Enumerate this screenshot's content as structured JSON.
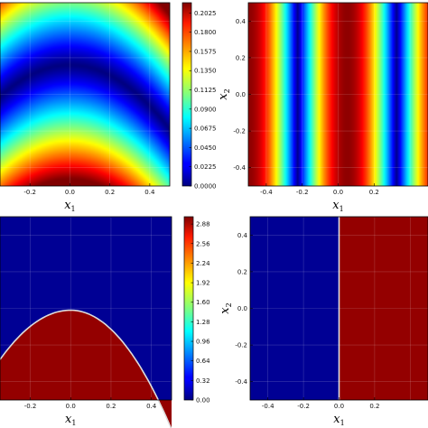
{
  "chart_data": [
    {
      "type": "heatmap",
      "panel": "top-left",
      "field": "smooth",
      "xlabel": "x1",
      "ylabel": "",
      "x_ticks": [
        "-0.2",
        "0.0",
        "0.2",
        "0.4"
      ],
      "x_tick_values": [
        -0.2,
        0.0,
        0.2,
        0.4
      ],
      "xlim": [
        -0.35,
        0.5
      ],
      "ylim": [
        -0.5,
        0.5
      ],
      "colormap": "jet",
      "colorbar": {
        "range": [
          0.0,
          0.2145
        ],
        "ticks": [
          "0.2025",
          "0.1800",
          "0.1575",
          "0.1350",
          "0.1125",
          "0.0900",
          "0.0675",
          "0.0450",
          "0.0225",
          "0.0000"
        ],
        "tick_values": [
          0.2025,
          0.18,
          0.1575,
          0.135,
          0.1125,
          0.09,
          0.0675,
          0.045,
          0.0225,
          0.0
        ]
      },
      "grid": true
    },
    {
      "type": "heatmap",
      "panel": "top-right",
      "field": "stripes",
      "xlabel": "x1",
      "ylabel": "x2",
      "x_ticks": [
        "-0.4",
        "-0.2",
        "0.0",
        "0.2"
      ],
      "x_tick_values": [
        -0.4,
        -0.2,
        0.0,
        0.2
      ],
      "y_ticks": [
        "0.4",
        "0.2",
        "0.0",
        "-0.2",
        "-0.4"
      ],
      "y_tick_values": [
        0.4,
        0.2,
        0.0,
        -0.2,
        -0.4
      ],
      "xlim": [
        -0.5,
        0.5
      ],
      "ylim": [
        -0.5,
        0.5
      ],
      "colormap": "jet",
      "grid": true
    },
    {
      "type": "heatmap",
      "panel": "bottom-left",
      "field": "step-parabola",
      "xlabel": "x1",
      "ylabel": "",
      "x_ticks": [
        "-0.2",
        "0.0",
        "0.2",
        "0.4"
      ],
      "x_tick_values": [
        -0.2,
        0.0,
        0.2,
        0.4
      ],
      "xlim": [
        -0.35,
        0.5
      ],
      "ylim": [
        -0.5,
        0.5
      ],
      "colormap": "jet",
      "colorbar": {
        "range": [
          0.0,
          3.0
        ],
        "ticks": [
          "2.88",
          "2.56",
          "2.24",
          "1.92",
          "1.60",
          "1.28",
          "0.96",
          "0.64",
          "0.32",
          "0.00"
        ],
        "tick_values": [
          2.88,
          2.56,
          2.24,
          1.92,
          1.6,
          1.28,
          0.96,
          0.64,
          0.32,
          0.0
        ]
      },
      "regions": [
        {
          "name": "upper",
          "value": 0.0
        },
        {
          "name": "lower",
          "value": 3.0
        }
      ],
      "grid": true
    },
    {
      "type": "heatmap",
      "panel": "bottom-right",
      "field": "step-vertical",
      "xlabel": "x1",
      "ylabel": "x2",
      "x_ticks": [
        "-0.4",
        "-0.2",
        "0.0",
        "0.2"
      ],
      "x_tick_values": [
        -0.4,
        -0.2,
        0.0,
        0.2
      ],
      "y_ticks": [
        "0.4",
        "0.2",
        "0.0",
        "-0.2",
        "-0.4"
      ],
      "y_tick_values": [
        0.4,
        0.2,
        0.0,
        -0.2,
        -0.4
      ],
      "xlim": [
        -0.5,
        0.5
      ],
      "ylim": [
        -0.5,
        0.5
      ],
      "colormap": "jet",
      "interface_x": 0.0,
      "regions": [
        {
          "name": "left",
          "value": 0.0
        },
        {
          "name": "right",
          "value": 3.0
        }
      ],
      "grid": true
    }
  ]
}
